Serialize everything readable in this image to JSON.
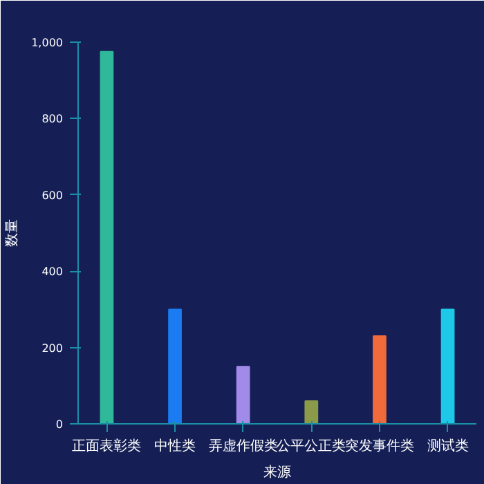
{
  "chart_data": {
    "type": "bar",
    "xlabel": "来源",
    "ylabel": "数量",
    "categories": [
      "正面表彰类",
      "中性类",
      "弄虚作假类",
      "公平公正类",
      "突发事件类",
      "测试类"
    ],
    "values": [
      975,
      300,
      150,
      60,
      230,
      300
    ],
    "colors": [
      "#2fb89a",
      "#1a7cf0",
      "#a28be8",
      "#8a9a48",
      "#f06a3a",
      "#1ec8e8"
    ],
    "ylim": [
      0,
      1000
    ],
    "yticks": [
      0,
      200,
      400,
      600,
      800,
      {
        "value": 1000,
        "label": "1,000"
      }
    ],
    "grid": false
  }
}
